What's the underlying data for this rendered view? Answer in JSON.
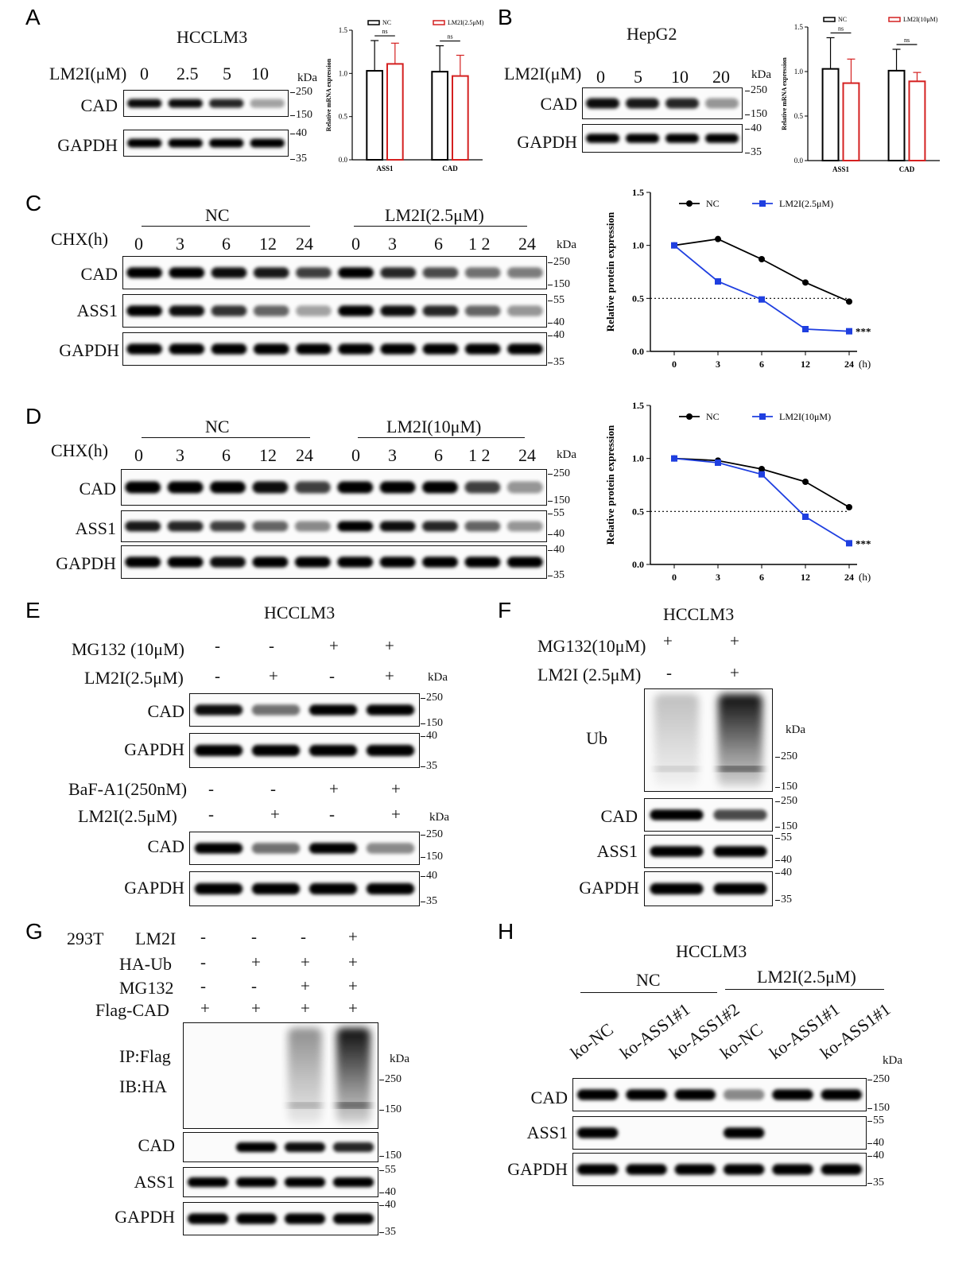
{
  "panels": {
    "A": {
      "letter": "A",
      "title": "HCCLM3",
      "treatment_label": "LM2I(μM)",
      "doses": [
        "0",
        "2.5",
        "5",
        "10"
      ],
      "rows": [
        "CAD",
        "GAPDH"
      ],
      "kda": "kDa",
      "markers": [
        "250",
        "150",
        "40",
        "35"
      ]
    },
    "B": {
      "letter": "B",
      "title": "HepG2",
      "treatment_label": "LM2I(μM)",
      "doses": [
        "0",
        "5",
        "10",
        "20"
      ],
      "rows": [
        "CAD",
        "GAPDH"
      ],
      "kda": "kDa",
      "markers": [
        "250",
        "150",
        "40",
        "35"
      ]
    },
    "C": {
      "letter": "C",
      "group1": "NC",
      "group2": "LM2I(2.5μM)",
      "chx_label": "CHX(h)",
      "times1": [
        "0",
        "3",
        "6",
        "12",
        "24"
      ],
      "times2": [
        "0",
        "3",
        "6",
        "1 2",
        "24"
      ],
      "rows": [
        "CAD",
        "ASS1",
        "GAPDH"
      ],
      "kda": "kDa",
      "markers": [
        "250",
        "150",
        "55",
        "40",
        "40",
        "35"
      ]
    },
    "D": {
      "letter": "D",
      "group1": "NC",
      "group2": "LM2I(10μM)",
      "chx_label": "CHX(h)",
      "times1": [
        "0",
        "3",
        "6",
        "12",
        "24"
      ],
      "times2": [
        "0",
        "3",
        "6",
        "1 2",
        "24"
      ],
      "rows": [
        "CAD",
        "ASS1",
        "GAPDH"
      ],
      "kda": "kDa",
      "markers": [
        "250",
        "150",
        "55",
        "40",
        "40",
        "35"
      ]
    },
    "E": {
      "letter": "E",
      "title": "HCCLM3",
      "top_treatments": [
        {
          "label": "MG132 (10μM)",
          "signs": [
            "-",
            "-",
            "+",
            "+"
          ]
        },
        {
          "label": "LM2I(2.5μM)",
          "signs": [
            "-",
            "+",
            "-",
            "+"
          ]
        }
      ],
      "bottom_treatments": [
        {
          "label": "BaF-A1(250nM)",
          "signs": [
            "-",
            "-",
            "+",
            "+"
          ]
        },
        {
          "label": "LM2I(2.5μM)",
          "signs": [
            "-",
            "+",
            "-",
            "+"
          ]
        }
      ],
      "rows_top": [
        "CAD",
        "GAPDH"
      ],
      "rows_bottom": [
        "CAD",
        "GAPDH"
      ],
      "kda": "kDa",
      "markers": [
        "250",
        "150",
        "40",
        "35"
      ]
    },
    "F": {
      "letter": "F",
      "title": "HCCLM3",
      "treatments": [
        {
          "label": "MG132(10μM)",
          "signs": [
            "+",
            "+"
          ]
        },
        {
          "label": "LM2I (2.5μM)",
          "signs": [
            "-",
            "+"
          ]
        }
      ],
      "rows": [
        "Ub",
        "CAD",
        "ASS1",
        "GAPDH"
      ],
      "kda": "kDa",
      "markers_ub": [
        "250",
        "150"
      ],
      "markers": [
        "250",
        "150",
        "55",
        "40",
        "40",
        "35"
      ]
    },
    "G": {
      "letter": "G",
      "cell": "293T",
      "treatments": [
        {
          "label": "LM2I",
          "signs": [
            "-",
            "-",
            "-",
            "+"
          ]
        },
        {
          "label": "HA-Ub",
          "signs": [
            "-",
            "+",
            "+",
            "+"
          ]
        },
        {
          "label": "MG132",
          "signs": [
            "-",
            "-",
            "+",
            "+"
          ]
        },
        {
          "label": "Flag-CAD",
          "signs": [
            "+",
            "+",
            "+",
            "+"
          ]
        }
      ],
      "ip_label": "IP:Flag",
      "ib_label": "IB:HA",
      "rows": [
        "CAD",
        "ASS1",
        "GAPDH"
      ],
      "kda": "kDa",
      "markers_ip": [
        "250",
        "150"
      ],
      "markers": [
        "150",
        "55",
        "40",
        "40",
        "35"
      ]
    },
    "H": {
      "letter": "H",
      "title": "HCCLM3",
      "group1": "NC",
      "group2": "LM2I(2.5μM)",
      "lanes": [
        "ko-NC",
        "ko-ASS1#1",
        "ko-ASS1#2",
        "ko-NC",
        "ko-ASS1#1",
        "ko-ASS1#1"
      ],
      "rows": [
        "CAD",
        "ASS1",
        "GAPDH"
      ],
      "kda": "kDa",
      "markers": [
        "250",
        "150",
        "55",
        "40",
        "40",
        "35"
      ]
    }
  },
  "chart_data": [
    {
      "type": "bar",
      "panel": "A",
      "ylabel": "Relative mRNA expression",
      "categories": [
        "ASS1",
        "CAD"
      ],
      "ylim": [
        0,
        1.5
      ],
      "yticks": [
        "0.0",
        "0.5",
        "1.0",
        "1.5"
      ],
      "series": [
        {
          "name": "NC",
          "color": "#000000",
          "values": [
            1.03,
            1.02
          ],
          "errors": [
            0.35,
            0.3
          ]
        },
        {
          "name": "LM2I(2.5μM)",
          "color": "#d42020",
          "values": [
            1.11,
            0.97
          ],
          "errors": [
            0.24,
            0.24
          ]
        }
      ],
      "significance": [
        "ns",
        "ns"
      ]
    },
    {
      "type": "bar",
      "panel": "B",
      "ylabel": "Relative mRNA expression",
      "categories": [
        "ASS1",
        "CAD"
      ],
      "ylim": [
        0,
        1.5
      ],
      "yticks": [
        "0.0",
        "0.5",
        "1.0",
        "1.5"
      ],
      "series": [
        {
          "name": "NC",
          "color": "#000000",
          "values": [
            1.03,
            1.01
          ],
          "errors": [
            0.35,
            0.24
          ]
        },
        {
          "name": "LM2I(10μM)",
          "color": "#d42020",
          "values": [
            0.87,
            0.89
          ],
          "errors": [
            0.27,
            0.1
          ]
        }
      ],
      "significance": [
        "ns",
        "ns"
      ]
    },
    {
      "type": "line",
      "panel": "C",
      "ylabel": "Relative protein expression",
      "x": [
        "0",
        "3",
        "6",
        "12",
        "24"
      ],
      "x_unit": "(h)",
      "ylim": [
        0,
        1.5
      ],
      "yticks": [
        "0.0",
        "0.5",
        "1.0",
        "1.5"
      ],
      "reference_line": 0.5,
      "series": [
        {
          "name": "NC",
          "color": "#000000",
          "marker": "circle",
          "values": [
            1.0,
            1.06,
            0.87,
            0.65,
            0.47
          ]
        },
        {
          "name": "LM2I(2.5μM)",
          "color": "#1f3fe0",
          "marker": "square",
          "values": [
            1.0,
            0.66,
            0.49,
            0.21,
            0.19
          ]
        }
      ],
      "annotation": "***"
    },
    {
      "type": "line",
      "panel": "D",
      "ylabel": "Relative protein expression",
      "x": [
        "0",
        "3",
        "6",
        "12",
        "24"
      ],
      "x_unit": "(h)",
      "ylim": [
        0,
        1.5
      ],
      "yticks": [
        "0.0",
        "0.5",
        "1.0",
        "1.5"
      ],
      "reference_line": 0.5,
      "series": [
        {
          "name": "NC",
          "color": "#000000",
          "marker": "circle",
          "values": [
            1.0,
            0.98,
            0.9,
            0.78,
            0.54
          ]
        },
        {
          "name": "LM2I(10μM)",
          "color": "#1f3fe0",
          "marker": "square",
          "values": [
            1.0,
            0.96,
            0.85,
            0.45,
            0.2
          ]
        }
      ],
      "annotation": "***"
    }
  ]
}
